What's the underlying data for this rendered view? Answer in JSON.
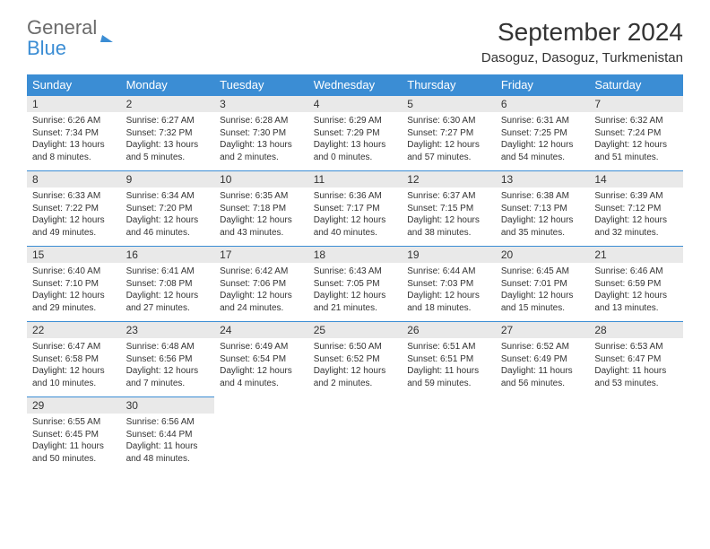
{
  "brand": {
    "part1": "General",
    "part2": "Blue"
  },
  "title": "September 2024",
  "location": "Dasoguz, Dasoguz, Turkmenistan",
  "colors": {
    "header_bg": "#3b8dd4",
    "daynum_bg": "#e9e9e9",
    "border": "#3b8dd4"
  },
  "day_headers": [
    "Sunday",
    "Monday",
    "Tuesday",
    "Wednesday",
    "Thursday",
    "Friday",
    "Saturday"
  ],
  "weeks": [
    [
      {
        "n": "1",
        "sr": "6:26 AM",
        "ss": "7:34 PM",
        "dl": "13 hours and 8 minutes."
      },
      {
        "n": "2",
        "sr": "6:27 AM",
        "ss": "7:32 PM",
        "dl": "13 hours and 5 minutes."
      },
      {
        "n": "3",
        "sr": "6:28 AM",
        "ss": "7:30 PM",
        "dl": "13 hours and 2 minutes."
      },
      {
        "n": "4",
        "sr": "6:29 AM",
        "ss": "7:29 PM",
        "dl": "13 hours and 0 minutes."
      },
      {
        "n": "5",
        "sr": "6:30 AM",
        "ss": "7:27 PM",
        "dl": "12 hours and 57 minutes."
      },
      {
        "n": "6",
        "sr": "6:31 AM",
        "ss": "7:25 PM",
        "dl": "12 hours and 54 minutes."
      },
      {
        "n": "7",
        "sr": "6:32 AM",
        "ss": "7:24 PM",
        "dl": "12 hours and 51 minutes."
      }
    ],
    [
      {
        "n": "8",
        "sr": "6:33 AM",
        "ss": "7:22 PM",
        "dl": "12 hours and 49 minutes."
      },
      {
        "n": "9",
        "sr": "6:34 AM",
        "ss": "7:20 PM",
        "dl": "12 hours and 46 minutes."
      },
      {
        "n": "10",
        "sr": "6:35 AM",
        "ss": "7:18 PM",
        "dl": "12 hours and 43 minutes."
      },
      {
        "n": "11",
        "sr": "6:36 AM",
        "ss": "7:17 PM",
        "dl": "12 hours and 40 minutes."
      },
      {
        "n": "12",
        "sr": "6:37 AM",
        "ss": "7:15 PM",
        "dl": "12 hours and 38 minutes."
      },
      {
        "n": "13",
        "sr": "6:38 AM",
        "ss": "7:13 PM",
        "dl": "12 hours and 35 minutes."
      },
      {
        "n": "14",
        "sr": "6:39 AM",
        "ss": "7:12 PM",
        "dl": "12 hours and 32 minutes."
      }
    ],
    [
      {
        "n": "15",
        "sr": "6:40 AM",
        "ss": "7:10 PM",
        "dl": "12 hours and 29 minutes."
      },
      {
        "n": "16",
        "sr": "6:41 AM",
        "ss": "7:08 PM",
        "dl": "12 hours and 27 minutes."
      },
      {
        "n": "17",
        "sr": "6:42 AM",
        "ss": "7:06 PM",
        "dl": "12 hours and 24 minutes."
      },
      {
        "n": "18",
        "sr": "6:43 AM",
        "ss": "7:05 PM",
        "dl": "12 hours and 21 minutes."
      },
      {
        "n": "19",
        "sr": "6:44 AM",
        "ss": "7:03 PM",
        "dl": "12 hours and 18 minutes."
      },
      {
        "n": "20",
        "sr": "6:45 AM",
        "ss": "7:01 PM",
        "dl": "12 hours and 15 minutes."
      },
      {
        "n": "21",
        "sr": "6:46 AM",
        "ss": "6:59 PM",
        "dl": "12 hours and 13 minutes."
      }
    ],
    [
      {
        "n": "22",
        "sr": "6:47 AM",
        "ss": "6:58 PM",
        "dl": "12 hours and 10 minutes."
      },
      {
        "n": "23",
        "sr": "6:48 AM",
        "ss": "6:56 PM",
        "dl": "12 hours and 7 minutes."
      },
      {
        "n": "24",
        "sr": "6:49 AM",
        "ss": "6:54 PM",
        "dl": "12 hours and 4 minutes."
      },
      {
        "n": "25",
        "sr": "6:50 AM",
        "ss": "6:52 PM",
        "dl": "12 hours and 2 minutes."
      },
      {
        "n": "26",
        "sr": "6:51 AM",
        "ss": "6:51 PM",
        "dl": "11 hours and 59 minutes."
      },
      {
        "n": "27",
        "sr": "6:52 AM",
        "ss": "6:49 PM",
        "dl": "11 hours and 56 minutes."
      },
      {
        "n": "28",
        "sr": "6:53 AM",
        "ss": "6:47 PM",
        "dl": "11 hours and 53 minutes."
      }
    ],
    [
      {
        "n": "29",
        "sr": "6:55 AM",
        "ss": "6:45 PM",
        "dl": "11 hours and 50 minutes."
      },
      {
        "n": "30",
        "sr": "6:56 AM",
        "ss": "6:44 PM",
        "dl": "11 hours and 48 minutes."
      },
      null,
      null,
      null,
      null,
      null
    ]
  ],
  "labels": {
    "sunrise": "Sunrise: ",
    "sunset": "Sunset: ",
    "daylight": "Daylight: "
  }
}
